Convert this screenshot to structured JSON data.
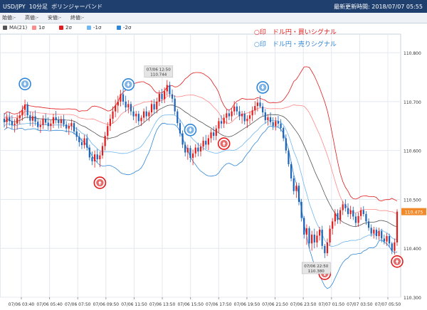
{
  "header": {
    "symbol": "USD/JPY",
    "timeframe": "10分足",
    "indicator": "ボリンジャーバンド",
    "update_label": "最新更新時間:",
    "update_time": "2018/07/07 05:55"
  },
  "ohlc_labels": [
    "始値:-",
    "高値:-",
    "安値:-",
    "終値:-"
  ],
  "legend": [
    {
      "label": "MA(21)",
      "color": "#555555"
    },
    {
      "label": "1σ",
      "color": "#ff8a8a"
    },
    {
      "label": "2σ",
      "color": "#e31b1b"
    },
    {
      "label": "-1σ",
      "color": "#6fb7ee"
    },
    {
      "label": "-2σ",
      "color": "#2f86d8"
    }
  ],
  "notes": {
    "buy": "○印　ドル円・買いシグナル",
    "sell": "○印　ドル円・売りシグナル"
  },
  "colors": {
    "up": "#e31b1b",
    "down": "#1c63b8",
    "ma": "#555555",
    "sigma1_upper": "#ff8a8a",
    "sigma2_upper": "#e31b1b",
    "sigma1_lower": "#6fb7ee",
    "sigma2_lower": "#2f86d8",
    "price_tag": "#f08a2a",
    "grid": "#e4e8ef",
    "header": "#1f3f6e"
  },
  "chart_data": {
    "type": "candlestick",
    "ylim": [
      110.3,
      110.838
    ],
    "yticks": [
      "110.800",
      "110.700",
      "110.600",
      "110.500",
      "110.400",
      "110.300"
    ],
    "xticks": [
      "07/06 03:40",
      "07/06 05:40",
      "07/06 07:50",
      "07/06 09:50",
      "07/06 11:50",
      "07/06 13:50",
      "07/06 15:50",
      "07/06 17:50",
      "07/06 19:50",
      "07/06 21:50",
      "07/06 23:50",
      "07/07 01:50",
      "07/07 03:50",
      "07/07 05:50"
    ],
    "current_price": "110.475",
    "annotations": [
      {
        "lines": [
          "07/06 12:50",
          "110.744"
        ]
      },
      {
        "lines": [
          "07/06 22:50",
          "110.380"
        ]
      }
    ],
    "signals": [
      {
        "type": "sell",
        "index": 8
      },
      {
        "type": "sell",
        "index": 48
      },
      {
        "type": "sell",
        "index": 72
      },
      {
        "type": "sell",
        "index": 100
      },
      {
        "type": "buy",
        "index": 37
      },
      {
        "type": "buy",
        "index": 85
      },
      {
        "type": "buy",
        "index": 124
      },
      {
        "type": "buy",
        "index": 152
      }
    ],
    "candles": [
      {
        "o": 110.665,
        "h": 110.677,
        "l": 110.647,
        "c": 110.658
      },
      {
        "o": 110.658,
        "h": 110.676,
        "l": 110.645,
        "c": 110.668
      },
      {
        "o": 110.668,
        "h": 110.679,
        "l": 110.651,
        "c": 110.66
      },
      {
        "o": 110.66,
        "h": 110.672,
        "l": 110.644,
        "c": 110.652
      },
      {
        "o": 110.652,
        "h": 110.664,
        "l": 110.637,
        "c": 110.655
      },
      {
        "o": 110.655,
        "h": 110.674,
        "l": 110.643,
        "c": 110.666
      },
      {
        "o": 110.666,
        "h": 110.681,
        "l": 110.654,
        "c": 110.672
      },
      {
        "o": 110.672,
        "h": 110.692,
        "l": 110.661,
        "c": 110.683
      },
      {
        "o": 110.683,
        "h": 110.704,
        "l": 110.67,
        "c": 110.694
      },
      {
        "o": 110.694,
        "h": 110.699,
        "l": 110.666,
        "c": 110.672
      },
      {
        "o": 110.672,
        "h": 110.68,
        "l": 110.65,
        "c": 110.661
      },
      {
        "o": 110.661,
        "h": 110.678,
        "l": 110.648,
        "c": 110.67
      },
      {
        "o": 110.67,
        "h": 110.682,
        "l": 110.651,
        "c": 110.659
      },
      {
        "o": 110.659,
        "h": 110.666,
        "l": 110.641,
        "c": 110.648
      },
      {
        "o": 110.648,
        "h": 110.662,
        "l": 110.636,
        "c": 110.652
      },
      {
        "o": 110.652,
        "h": 110.672,
        "l": 110.644,
        "c": 110.665
      },
      {
        "o": 110.665,
        "h": 110.676,
        "l": 110.652,
        "c": 110.657
      },
      {
        "o": 110.657,
        "h": 110.668,
        "l": 110.642,
        "c": 110.65
      },
      {
        "o": 110.65,
        "h": 110.662,
        "l": 110.64,
        "c": 110.655
      },
      {
        "o": 110.655,
        "h": 110.675,
        "l": 110.646,
        "c": 110.668
      },
      {
        "o": 110.668,
        "h": 110.681,
        "l": 110.655,
        "c": 110.662
      },
      {
        "o": 110.662,
        "h": 110.67,
        "l": 110.645,
        "c": 110.656
      },
      {
        "o": 110.656,
        "h": 110.671,
        "l": 110.646,
        "c": 110.664
      },
      {
        "o": 110.664,
        "h": 110.673,
        "l": 110.648,
        "c": 110.653
      },
      {
        "o": 110.653,
        "h": 110.66,
        "l": 110.637,
        "c": 110.645
      },
      {
        "o": 110.645,
        "h": 110.656,
        "l": 110.632,
        "c": 110.65
      },
      {
        "o": 110.65,
        "h": 110.664,
        "l": 110.641,
        "c": 110.656
      },
      {
        "o": 110.656,
        "h": 110.66,
        "l": 110.633,
        "c": 110.639
      },
      {
        "o": 110.639,
        "h": 110.648,
        "l": 110.62,
        "c": 110.628
      },
      {
        "o": 110.628,
        "h": 110.636,
        "l": 110.608,
        "c": 110.617
      },
      {
        "o": 110.617,
        "h": 110.625,
        "l": 110.603,
        "c": 110.611
      },
      {
        "o": 110.611,
        "h": 110.632,
        "l": 110.604,
        "c": 110.625
      },
      {
        "o": 110.625,
        "h": 110.634,
        "l": 110.6,
        "c": 110.606
      },
      {
        "o": 110.606,
        "h": 110.612,
        "l": 110.58,
        "c": 110.586
      },
      {
        "o": 110.586,
        "h": 110.598,
        "l": 110.57,
        "c": 110.578
      },
      {
        "o": 110.578,
        "h": 110.6,
        "l": 110.565,
        "c": 110.592
      },
      {
        "o": 110.592,
        "h": 110.603,
        "l": 110.576,
        "c": 110.582
      },
      {
        "o": 110.582,
        "h": 110.598,
        "l": 110.566,
        "c": 110.59
      },
      {
        "o": 110.59,
        "h": 110.616,
        "l": 110.583,
        "c": 110.609
      },
      {
        "o": 110.609,
        "h": 110.638,
        "l": 110.6,
        "c": 110.63
      },
      {
        "o": 110.63,
        "h": 110.658,
        "l": 110.621,
        "c": 110.65
      },
      {
        "o": 110.65,
        "h": 110.674,
        "l": 110.64,
        "c": 110.665
      },
      {
        "o": 110.665,
        "h": 110.69,
        "l": 110.655,
        "c": 110.68
      },
      {
        "o": 110.68,
        "h": 110.704,
        "l": 110.668,
        "c": 110.692
      },
      {
        "o": 110.692,
        "h": 110.712,
        "l": 110.677,
        "c": 110.7
      },
      {
        "o": 110.7,
        "h": 110.724,
        "l": 110.69,
        "c": 110.715
      },
      {
        "o": 110.715,
        "h": 110.727,
        "l": 110.693,
        "c": 110.7
      },
      {
        "o": 110.7,
        "h": 110.712,
        "l": 110.679,
        "c": 110.688
      },
      {
        "o": 110.688,
        "h": 110.703,
        "l": 110.676,
        "c": 110.695
      },
      {
        "o": 110.695,
        "h": 110.7,
        "l": 110.672,
        "c": 110.68
      },
      {
        "o": 110.68,
        "h": 110.689,
        "l": 110.662,
        "c": 110.67
      },
      {
        "o": 110.67,
        "h": 110.681,
        "l": 110.656,
        "c": 110.675
      },
      {
        "o": 110.675,
        "h": 110.681,
        "l": 110.652,
        "c": 110.66
      },
      {
        "o": 110.66,
        "h": 110.672,
        "l": 110.65,
        "c": 110.667
      },
      {
        "o": 110.667,
        "h": 110.686,
        "l": 110.658,
        "c": 110.68
      },
      {
        "o": 110.68,
        "h": 110.69,
        "l": 110.663,
        "c": 110.67
      },
      {
        "o": 110.67,
        "h": 110.682,
        "l": 110.66,
        "c": 110.678
      },
      {
        "o": 110.678,
        "h": 110.703,
        "l": 110.67,
        "c": 110.695
      },
      {
        "o": 110.695,
        "h": 110.705,
        "l": 110.676,
        "c": 110.684
      },
      {
        "o": 110.684,
        "h": 110.708,
        "l": 110.676,
        "c": 110.7
      },
      {
        "o": 110.7,
        "h": 110.723,
        "l": 110.691,
        "c": 110.716
      },
      {
        "o": 110.716,
        "h": 110.726,
        "l": 110.697,
        "c": 110.705
      },
      {
        "o": 110.705,
        "h": 110.729,
        "l": 110.697,
        "c": 110.721
      },
      {
        "o": 110.721,
        "h": 110.744,
        "l": 110.712,
        "c": 110.734
      },
      {
        "o": 110.734,
        "h": 110.741,
        "l": 110.708,
        "c": 110.715
      },
      {
        "o": 110.715,
        "h": 110.725,
        "l": 110.698,
        "c": 110.706
      },
      {
        "o": 110.706,
        "h": 110.713,
        "l": 110.673,
        "c": 110.68
      },
      {
        "o": 110.68,
        "h": 110.685,
        "l": 110.65,
        "c": 110.656
      },
      {
        "o": 110.656,
        "h": 110.663,
        "l": 110.628,
        "c": 110.635
      },
      {
        "o": 110.635,
        "h": 110.641,
        "l": 110.605,
        "c": 110.612
      },
      {
        "o": 110.612,
        "h": 110.618,
        "l": 110.588,
        "c": 110.596
      },
      {
        "o": 110.596,
        "h": 110.612,
        "l": 110.581,
        "c": 110.605
      },
      {
        "o": 110.605,
        "h": 110.61,
        "l": 110.576,
        "c": 110.585
      },
      {
        "o": 110.585,
        "h": 110.602,
        "l": 110.57,
        "c": 110.594
      },
      {
        "o": 110.594,
        "h": 110.613,
        "l": 110.586,
        "c": 110.606
      },
      {
        "o": 110.606,
        "h": 110.616,
        "l": 110.588,
        "c": 110.598
      },
      {
        "o": 110.598,
        "h": 110.615,
        "l": 110.588,
        "c": 110.608
      },
      {
        "o": 110.608,
        "h": 110.628,
        "l": 110.6,
        "c": 110.62
      },
      {
        "o": 110.62,
        "h": 110.632,
        "l": 110.603,
        "c": 110.612
      },
      {
        "o": 110.612,
        "h": 110.632,
        "l": 110.601,
        "c": 110.625
      },
      {
        "o": 110.625,
        "h": 110.644,
        "l": 110.616,
        "c": 110.637
      },
      {
        "o": 110.637,
        "h": 110.649,
        "l": 110.621,
        "c": 110.63
      },
      {
        "o": 110.63,
        "h": 110.652,
        "l": 110.621,
        "c": 110.645
      },
      {
        "o": 110.645,
        "h": 110.667,
        "l": 110.637,
        "c": 110.66
      },
      {
        "o": 110.66,
        "h": 110.672,
        "l": 110.645,
        "c": 110.655
      },
      {
        "o": 110.655,
        "h": 110.674,
        "l": 110.646,
        "c": 110.667
      },
      {
        "o": 110.667,
        "h": 110.684,
        "l": 110.654,
        "c": 110.676
      },
      {
        "o": 110.676,
        "h": 110.683,
        "l": 110.662,
        "c": 110.67
      },
      {
        "o": 110.67,
        "h": 110.686,
        "l": 110.66,
        "c": 110.68
      },
      {
        "o": 110.68,
        "h": 110.701,
        "l": 110.672,
        "c": 110.69
      },
      {
        "o": 110.69,
        "h": 110.697,
        "l": 110.673,
        "c": 110.68
      },
      {
        "o": 110.68,
        "h": 110.691,
        "l": 110.662,
        "c": 110.67
      },
      {
        "o": 110.67,
        "h": 110.681,
        "l": 110.655,
        "c": 110.675
      },
      {
        "o": 110.675,
        "h": 110.681,
        "l": 110.653,
        "c": 110.66
      },
      {
        "o": 110.66,
        "h": 110.672,
        "l": 110.646,
        "c": 110.665
      },
      {
        "o": 110.665,
        "h": 110.68,
        "l": 110.654,
        "c": 110.672
      },
      {
        "o": 110.672,
        "h": 110.69,
        "l": 110.66,
        "c": 110.682
      },
      {
        "o": 110.682,
        "h": 110.701,
        "l": 110.673,
        "c": 110.691
      },
      {
        "o": 110.691,
        "h": 110.706,
        "l": 110.68,
        "c": 110.698
      },
      {
        "o": 110.698,
        "h": 110.712,
        "l": 110.687,
        "c": 110.69
      },
      {
        "o": 110.69,
        "h": 110.697,
        "l": 110.671,
        "c": 110.678
      },
      {
        "o": 110.678,
        "h": 110.685,
        "l": 110.655,
        "c": 110.662
      },
      {
        "o": 110.662,
        "h": 110.674,
        "l": 110.651,
        "c": 110.668
      },
      {
        "o": 110.668,
        "h": 110.678,
        "l": 110.652,
        "c": 110.658
      },
      {
        "o": 110.658,
        "h": 110.668,
        "l": 110.642,
        "c": 110.65
      },
      {
        "o": 110.65,
        "h": 110.668,
        "l": 110.641,
        "c": 110.66
      },
      {
        "o": 110.66,
        "h": 110.671,
        "l": 110.648,
        "c": 110.655
      },
      {
        "o": 110.655,
        "h": 110.664,
        "l": 110.639,
        "c": 110.646
      },
      {
        "o": 110.646,
        "h": 110.649,
        "l": 110.619,
        "c": 110.625
      },
      {
        "o": 110.625,
        "h": 110.633,
        "l": 110.594,
        "c": 110.6
      },
      {
        "o": 110.6,
        "h": 110.604,
        "l": 110.567,
        "c": 110.572
      },
      {
        "o": 110.572,
        "h": 110.577,
        "l": 110.537,
        "c": 110.543
      },
      {
        "o": 110.543,
        "h": 110.549,
        "l": 110.51,
        "c": 110.517
      },
      {
        "o": 110.517,
        "h": 110.535,
        "l": 110.503,
        "c": 110.528
      },
      {
        "o": 110.528,
        "h": 110.534,
        "l": 110.488,
        "c": 110.495
      },
      {
        "o": 110.495,
        "h": 110.501,
        "l": 110.455,
        "c": 110.462
      },
      {
        "o": 110.462,
        "h": 110.466,
        "l": 110.42,
        "c": 110.428
      },
      {
        "o": 110.428,
        "h": 110.449,
        "l": 110.407,
        "c": 110.441
      },
      {
        "o": 110.441,
        "h": 110.445,
        "l": 110.4,
        "c": 110.41
      },
      {
        "o": 110.41,
        "h": 110.436,
        "l": 110.395,
        "c": 110.428
      },
      {
        "o": 110.428,
        "h": 110.44,
        "l": 110.4,
        "c": 110.412
      },
      {
        "o": 110.412,
        "h": 110.435,
        "l": 110.402,
        "c": 110.426
      },
      {
        "o": 110.426,
        "h": 110.444,
        "l": 110.416,
        "c": 110.438
      },
      {
        "o": 110.438,
        "h": 110.446,
        "l": 110.398,
        "c": 110.405
      },
      {
        "o": 110.405,
        "h": 110.409,
        "l": 110.38,
        "c": 110.39
      },
      {
        "o": 110.39,
        "h": 110.42,
        "l": 110.384,
        "c": 110.412
      },
      {
        "o": 110.412,
        "h": 110.447,
        "l": 110.405,
        "c": 110.44
      },
      {
        "o": 110.44,
        "h": 110.462,
        "l": 110.428,
        "c": 110.455
      },
      {
        "o": 110.455,
        "h": 110.48,
        "l": 110.446,
        "c": 110.472
      },
      {
        "o": 110.472,
        "h": 110.48,
        "l": 110.45,
        "c": 110.458
      },
      {
        "o": 110.458,
        "h": 110.484,
        "l": 110.45,
        "c": 110.478
      },
      {
        "o": 110.478,
        "h": 110.497,
        "l": 110.468,
        "c": 110.49
      },
      {
        "o": 110.49,
        "h": 110.5,
        "l": 110.475,
        "c": 110.482
      },
      {
        "o": 110.482,
        "h": 110.492,
        "l": 110.464,
        "c": 110.47
      },
      {
        "o": 110.47,
        "h": 110.487,
        "l": 110.46,
        "c": 110.478
      },
      {
        "o": 110.478,
        "h": 110.485,
        "l": 110.458,
        "c": 110.465
      },
      {
        "o": 110.465,
        "h": 110.472,
        "l": 110.445,
        "c": 110.452
      },
      {
        "o": 110.452,
        "h": 110.473,
        "l": 110.444,
        "c": 110.466
      },
      {
        "o": 110.466,
        "h": 110.484,
        "l": 110.458,
        "c": 110.478
      },
      {
        "o": 110.478,
        "h": 110.486,
        "l": 110.465,
        "c": 110.47
      },
      {
        "o": 110.47,
        "h": 110.476,
        "l": 110.448,
        "c": 110.455
      },
      {
        "o": 110.455,
        "h": 110.461,
        "l": 110.436,
        "c": 110.442
      },
      {
        "o": 110.442,
        "h": 110.449,
        "l": 110.424,
        "c": 110.43
      },
      {
        "o": 110.43,
        "h": 110.444,
        "l": 110.42,
        "c": 110.438
      },
      {
        "o": 110.438,
        "h": 110.443,
        "l": 110.418,
        "c": 110.425
      },
      {
        "o": 110.425,
        "h": 110.442,
        "l": 110.417,
        "c": 110.435
      },
      {
        "o": 110.435,
        "h": 110.44,
        "l": 110.412,
        "c": 110.42
      },
      {
        "o": 110.42,
        "h": 110.428,
        "l": 110.408,
        "c": 110.414
      },
      {
        "o": 110.414,
        "h": 110.431,
        "l": 110.405,
        "c": 110.425
      },
      {
        "o": 110.425,
        "h": 110.43,
        "l": 110.402,
        "c": 110.41
      },
      {
        "o": 110.41,
        "h": 110.413,
        "l": 110.388,
        "c": 110.395
      },
      {
        "o": 110.395,
        "h": 110.42,
        "l": 110.387,
        "c": 110.412
      },
      {
        "o": 110.412,
        "h": 110.48,
        "l": 110.405,
        "c": 110.475
      }
    ]
  }
}
